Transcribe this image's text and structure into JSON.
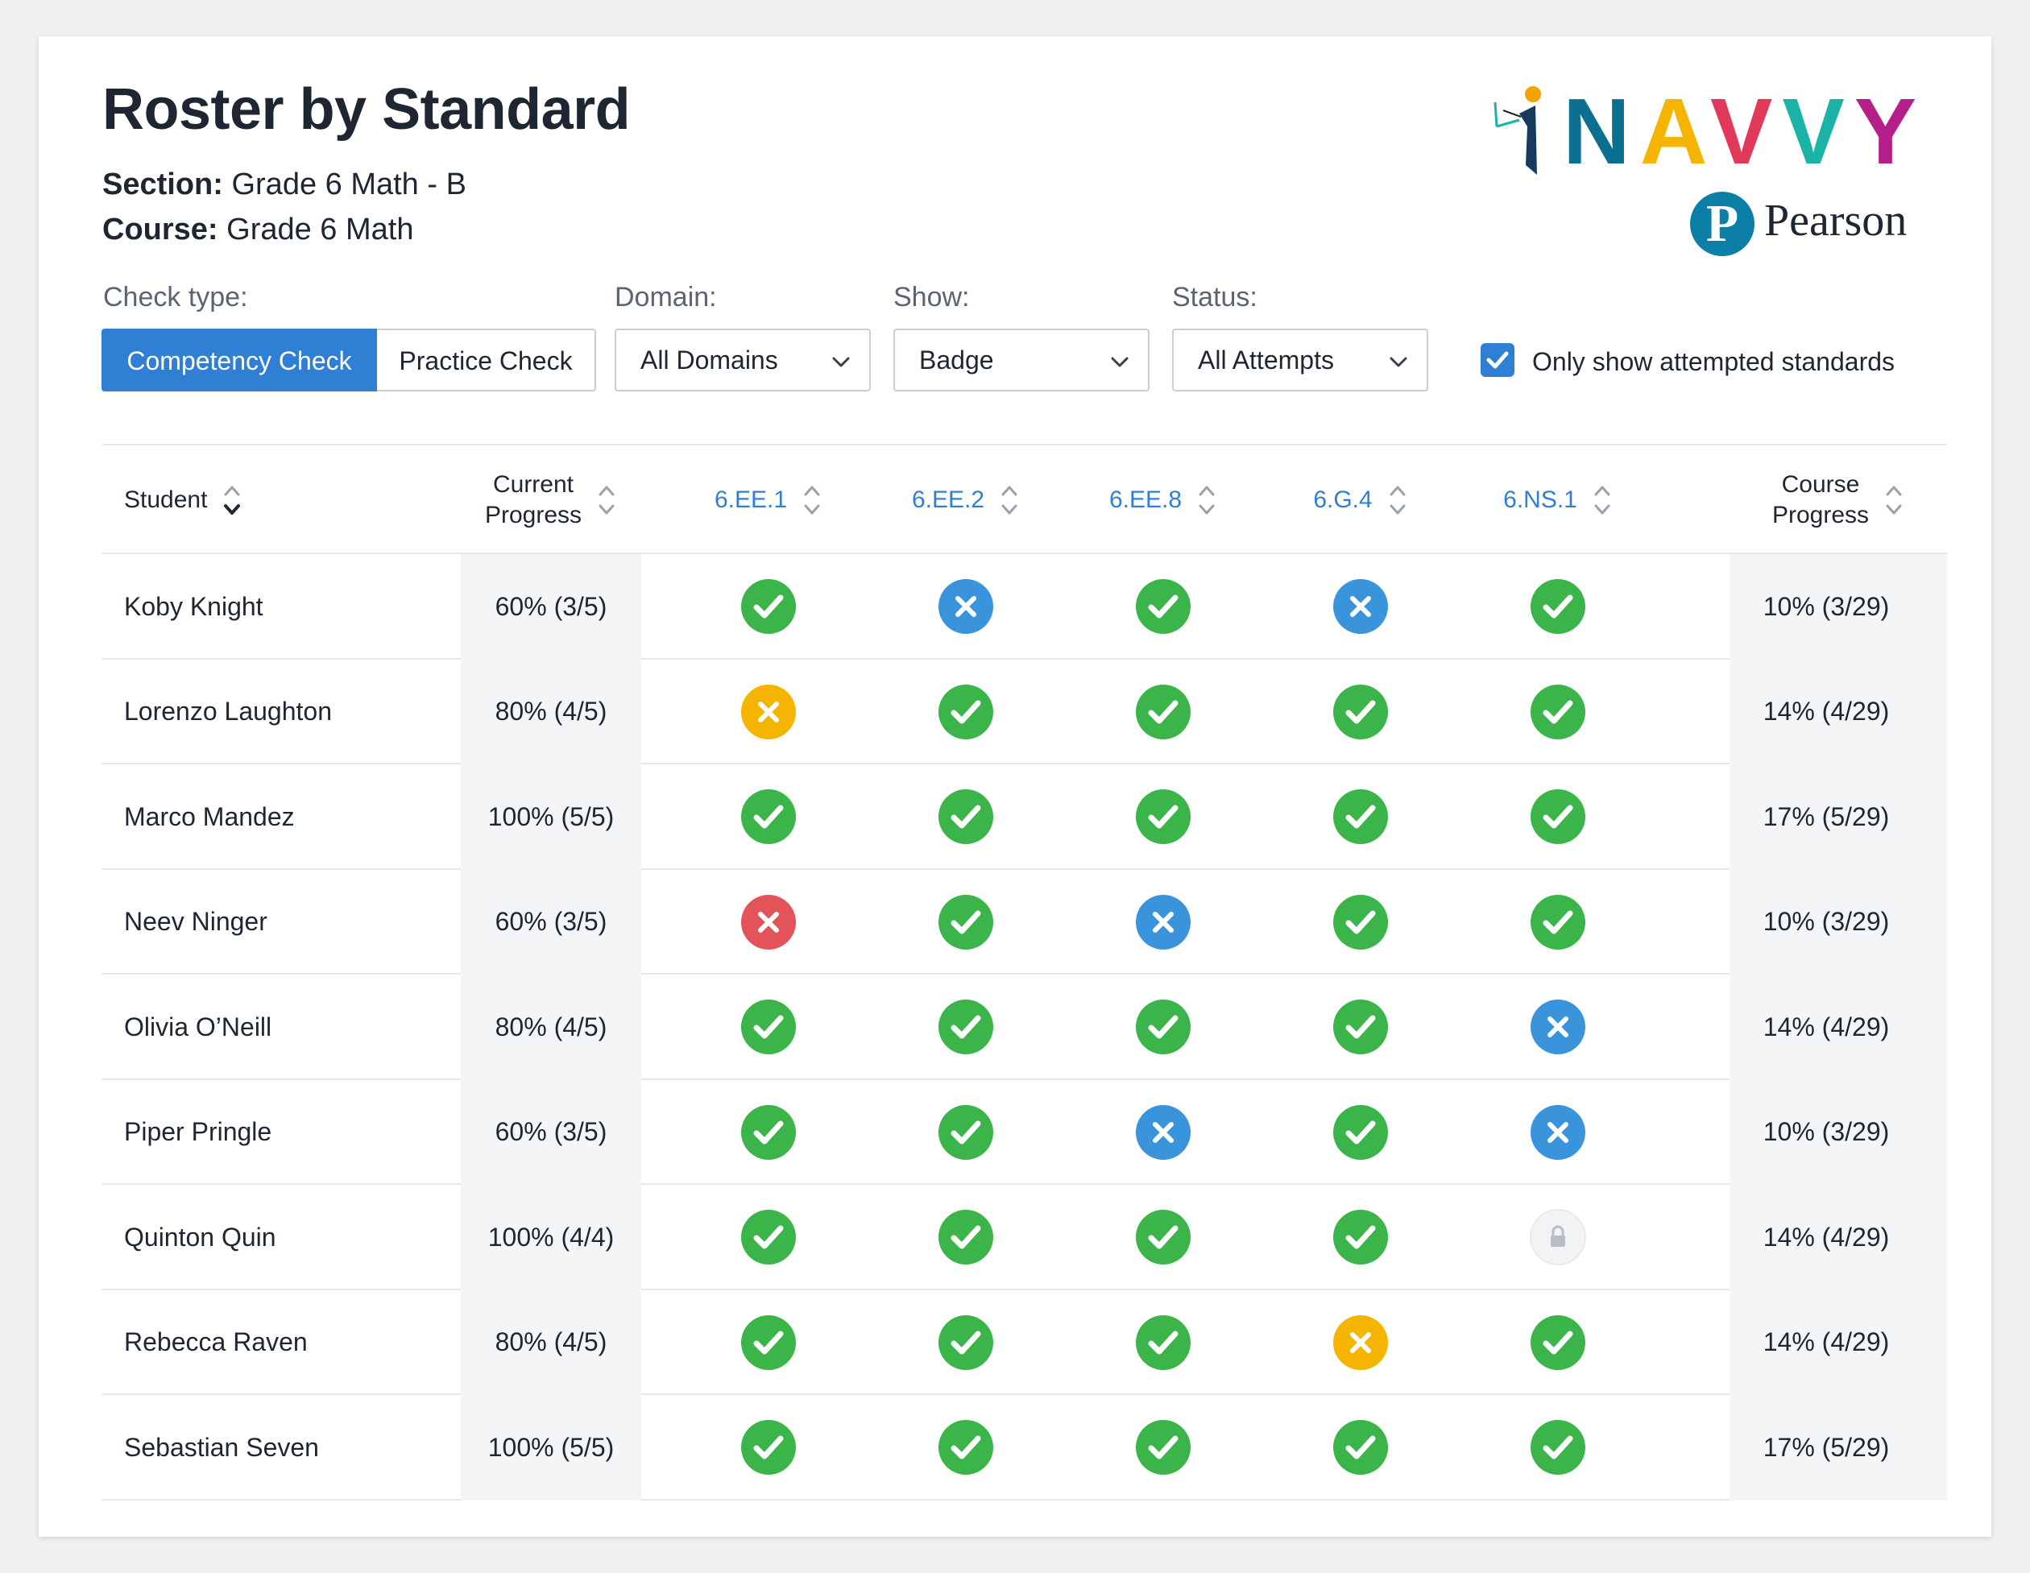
{
  "header": {
    "title": "Roster by Standard",
    "section_label": "Section:",
    "section_value": "Grade 6 Math - B",
    "course_label": "Course:",
    "course_value": "Grade 6 Math"
  },
  "logo": {
    "navvy_letters": [
      "N",
      "A",
      "V",
      "V",
      "Y"
    ],
    "navvy_colors": [
      "#0b6f8f",
      "#f5b400",
      "#e0395a",
      "#1ab3a6",
      "#b51f8a"
    ],
    "pearson_mark": "P",
    "pearson_text": "Pearson"
  },
  "filters": {
    "check_type_label": "Check type:",
    "check_type_options": [
      "Competency Check",
      "Practice Check"
    ],
    "check_type_selected": "Competency Check",
    "domain_label": "Domain:",
    "domain_value": "All Domains",
    "show_label": "Show:",
    "show_value": "Badge",
    "status_label": "Status:",
    "status_value": "All Attempts",
    "only_attempted_label": "Only show attempted standards",
    "only_attempted_checked": true
  },
  "table": {
    "columns": {
      "student": "Student",
      "current_progress": "Current\nProgress",
      "standards": [
        "6.EE.1",
        "6.EE.2",
        "6.EE.8",
        "6.G.4",
        "6.NS.1"
      ],
      "course_progress": "Course\nProgress"
    },
    "badge_colors": {
      "mastered": "#3bb44a",
      "retry": "#3a94dc",
      "partial": "#f5b400",
      "failed": "#e2545a",
      "locked": "#f2f3f5"
    },
    "rows": [
      {
        "student": "Koby Knight",
        "current": "60% (3/5)",
        "badges": [
          "mastered",
          "retry",
          "mastered",
          "retry",
          "mastered"
        ],
        "course": "10% (3/29)"
      },
      {
        "student": "Lorenzo Laughton",
        "current": "80% (4/5)",
        "badges": [
          "partial",
          "mastered",
          "mastered",
          "mastered",
          "mastered"
        ],
        "course": "14% (4/29)"
      },
      {
        "student": "Marco Mandez",
        "current": "100% (5/5)",
        "badges": [
          "mastered",
          "mastered",
          "mastered",
          "mastered",
          "mastered"
        ],
        "course": "17% (5/29)"
      },
      {
        "student": "Neev Ninger",
        "current": "60% (3/5)",
        "badges": [
          "failed",
          "mastered",
          "retry",
          "mastered",
          "mastered"
        ],
        "course": "10% (3/29)"
      },
      {
        "student": "Olivia O’Neill",
        "current": "80% (4/5)",
        "badges": [
          "mastered",
          "mastered",
          "mastered",
          "mastered",
          "retry"
        ],
        "course": "14% (4/29)"
      },
      {
        "student": "Piper Pringle",
        "current": "60% (3/5)",
        "badges": [
          "mastered",
          "mastered",
          "retry",
          "mastered",
          "retry"
        ],
        "course": "10% (3/29)"
      },
      {
        "student": "Quinton Quin",
        "current": "100% (4/4)",
        "badges": [
          "mastered",
          "mastered",
          "mastered",
          "mastered",
          "locked"
        ],
        "course": "14% (4/29)"
      },
      {
        "student": "Rebecca Raven",
        "current": "80% (4/5)",
        "badges": [
          "mastered",
          "mastered",
          "mastered",
          "partial",
          "mastered"
        ],
        "course": "14% (4/29)"
      },
      {
        "student": "Sebastian Seven",
        "current": "100% (5/5)",
        "badges": [
          "mastered",
          "mastered",
          "mastered",
          "mastered",
          "mastered"
        ],
        "course": "17% (5/29)"
      }
    ]
  }
}
